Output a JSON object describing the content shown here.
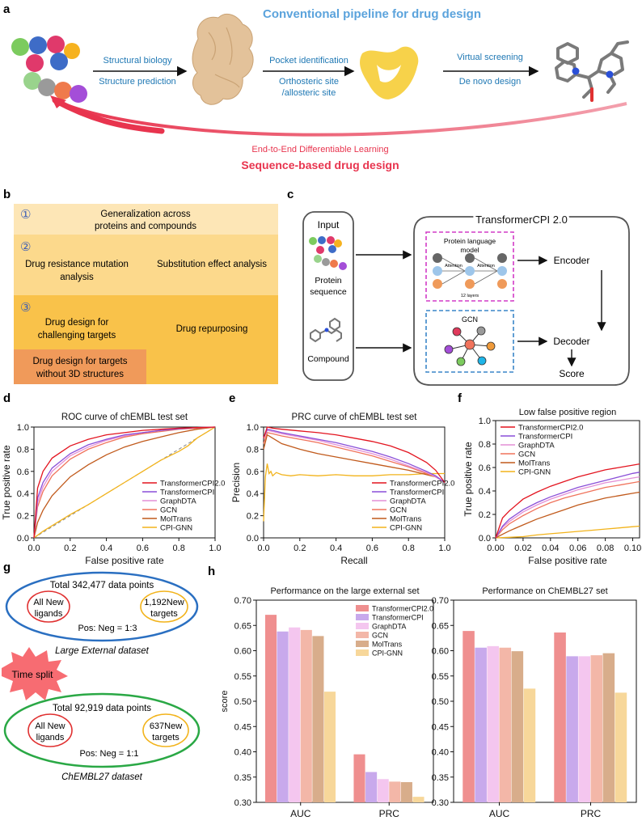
{
  "panel_letters": {
    "a": "a",
    "b": "b",
    "c": "c",
    "d": "d",
    "e": "e",
    "f": "f",
    "g": "g",
    "h": "h"
  },
  "panel_a": {
    "title": "Conventional pipeline for drug design",
    "step1_top": "Structural biology",
    "step1_bottom": "Structure prediction",
    "step2_top": "Pocket identification",
    "step2_mid": "Orthosteric site",
    "step2_bottom": "/allosteric site",
    "step3_top": "Virtual screening",
    "step3_bottom": "De novo design",
    "e2e_label": "End-to-End Differentiable Learning",
    "sequence_label": "Sequence-based drug design",
    "colors": {
      "blue_title": "#5ba3dc",
      "step_text": "#1f78b4",
      "red": "#e8344e",
      "pocket": "#f7d24a",
      "protein": "#e3c29a"
    }
  },
  "panel_b": {
    "section1_num": "①",
    "section1_text_l1": "Generalization across",
    "section1_text_l2": "proteins and compounds",
    "section2_num": "②",
    "section2_left_l1": "Drug resistance mutation",
    "section2_left_l2": "analysis",
    "section2_right": "Substitution effect analysis",
    "section3_num": "③",
    "section3_left_l1": "Drug design for",
    "section3_left_l2": "challenging targets",
    "section3_right": "Drug repurposing",
    "section3_bottom_l1": "Drug design for targets",
    "section3_bottom_l2": "without 3D structures",
    "colors": {
      "s1": "#fde6b6",
      "s2": "#fcd98c",
      "s3": "#f9c24a",
      "s3b": "#f09a5a"
    }
  },
  "panel_c": {
    "input_label": "Input",
    "protein_label_l1": "Protein",
    "protein_label_l2": "sequence",
    "compound_label": "Compound",
    "model_title": "TransformerCPI 2.0",
    "plm_l1": "Protein language",
    "plm_l2": "model",
    "attention1": "Attention",
    "attention2": "Attention",
    "layers": "12 layers",
    "gcn_label": "GCN",
    "encoder": "Encoder",
    "decoder": "Decoder",
    "score": "Score"
  },
  "chart_data": [
    {
      "id": "d",
      "type": "line",
      "title": "ROC curve of chEMBL test set",
      "xlabel": "False positive rate",
      "ylabel": "True positive rate",
      "xlim": [
        0,
        1
      ],
      "ylim": [
        0,
        1
      ],
      "xticks": [
        "0.0",
        "0.2",
        "0.4",
        "0.6",
        "0.8",
        "1.0"
      ],
      "yticks": [
        "0.0",
        "0.2",
        "0.4",
        "0.6",
        "0.8",
        "1.0"
      ],
      "legend_position": "bottom-right",
      "series": [
        {
          "name": "TransformerCPI2.0",
          "color": "#e3141f",
          "x": [
            0,
            0.02,
            0.05,
            0.1,
            0.2,
            0.3,
            0.4,
            0.5,
            0.6,
            0.7,
            0.8,
            0.9,
            1.0
          ],
          "y": [
            0,
            0.45,
            0.6,
            0.72,
            0.83,
            0.89,
            0.93,
            0.95,
            0.97,
            0.98,
            0.99,
            0.995,
            1.0
          ]
        },
        {
          "name": "TransformerCPI",
          "color": "#8a4fd8",
          "x": [
            0,
            0.02,
            0.05,
            0.1,
            0.2,
            0.3,
            0.4,
            0.5,
            0.6,
            0.7,
            0.8,
            0.9,
            1.0
          ],
          "y": [
            0,
            0.36,
            0.5,
            0.63,
            0.76,
            0.84,
            0.89,
            0.93,
            0.95,
            0.97,
            0.985,
            0.995,
            1.0
          ]
        },
        {
          "name": "GraphDTA",
          "color": "#e38fd6",
          "x": [
            0,
            0.02,
            0.05,
            0.1,
            0.2,
            0.3,
            0.4,
            0.5,
            0.6,
            0.7,
            0.8,
            0.9,
            1.0
          ],
          "y": [
            0,
            0.32,
            0.46,
            0.6,
            0.74,
            0.82,
            0.88,
            0.92,
            0.95,
            0.97,
            0.985,
            0.995,
            1.0
          ]
        },
        {
          "name": "GCN",
          "color": "#f0735c",
          "x": [
            0,
            0.02,
            0.05,
            0.1,
            0.2,
            0.3,
            0.4,
            0.5,
            0.6,
            0.7,
            0.8,
            0.9,
            1.0
          ],
          "y": [
            0,
            0.28,
            0.42,
            0.56,
            0.71,
            0.8,
            0.86,
            0.91,
            0.94,
            0.96,
            0.98,
            0.99,
            1.0
          ]
        },
        {
          "name": "MolTrans",
          "color": "#c15a1c",
          "x": [
            0,
            0.02,
            0.05,
            0.1,
            0.2,
            0.3,
            0.4,
            0.5,
            0.6,
            0.7,
            0.8,
            0.9,
            1.0
          ],
          "y": [
            0,
            0.14,
            0.25,
            0.38,
            0.55,
            0.66,
            0.75,
            0.82,
            0.87,
            0.91,
            0.95,
            0.98,
            1.0
          ]
        },
        {
          "name": "CPI-GNN",
          "color": "#f2b31b",
          "x": [
            0,
            0.05,
            0.1,
            0.2,
            0.3,
            0.4,
            0.5,
            0.6,
            0.7,
            0.75,
            0.8,
            0.85,
            0.9,
            0.95,
            1.0
          ],
          "y": [
            0,
            0.06,
            0.11,
            0.21,
            0.3,
            0.4,
            0.5,
            0.6,
            0.7,
            0.74,
            0.78,
            0.83,
            0.9,
            0.95,
            1.0
          ]
        }
      ],
      "diagonal": true
    },
    {
      "id": "e",
      "type": "line",
      "title": "PRC curve of chEMBL test set",
      "xlabel": "Recall",
      "ylabel": "Precision",
      "xlim": [
        0,
        1
      ],
      "ylim": [
        0,
        1
      ],
      "xticks": [
        "0.0",
        "0.2",
        "0.4",
        "0.6",
        "0.8",
        "1.0"
      ],
      "yticks": [
        "0.0",
        "0.2",
        "0.4",
        "0.6",
        "0.8",
        "1.0"
      ],
      "legend_position": "bottom-right",
      "series": [
        {
          "name": "TransformerCPI2.0",
          "color": "#e3141f",
          "x": [
            0,
            0.02,
            0.05,
            0.1,
            0.2,
            0.3,
            0.4,
            0.5,
            0.6,
            0.7,
            0.8,
            0.9,
            0.95,
            1.0
          ],
          "y": [
            0.9,
            1.0,
            0.99,
            0.98,
            0.965,
            0.95,
            0.93,
            0.9,
            0.87,
            0.83,
            0.77,
            0.68,
            0.61,
            0.5
          ]
        },
        {
          "name": "TransformerCPI",
          "color": "#8a4fd8",
          "x": [
            0,
            0.02,
            0.05,
            0.1,
            0.2,
            0.3,
            0.4,
            0.5,
            0.6,
            0.7,
            0.8,
            0.9,
            0.95,
            1.0
          ],
          "y": [
            0.9,
            0.98,
            0.97,
            0.95,
            0.92,
            0.89,
            0.86,
            0.82,
            0.78,
            0.73,
            0.67,
            0.6,
            0.56,
            0.5
          ]
        },
        {
          "name": "GraphDTA",
          "color": "#e38fd6",
          "x": [
            0,
            0.02,
            0.05,
            0.1,
            0.2,
            0.3,
            0.4,
            0.5,
            0.6,
            0.7,
            0.8,
            0.9,
            0.95,
            1.0
          ],
          "y": [
            0.9,
            0.97,
            0.96,
            0.94,
            0.91,
            0.88,
            0.84,
            0.8,
            0.76,
            0.71,
            0.65,
            0.59,
            0.55,
            0.5
          ]
        },
        {
          "name": "GCN",
          "color": "#f0735c",
          "x": [
            0,
            0.02,
            0.05,
            0.1,
            0.2,
            0.3,
            0.4,
            0.5,
            0.6,
            0.7,
            0.8,
            0.9,
            0.95,
            1.0
          ],
          "y": [
            0.85,
            0.95,
            0.94,
            0.92,
            0.89,
            0.86,
            0.82,
            0.78,
            0.74,
            0.69,
            0.64,
            0.58,
            0.55,
            0.5
          ]
        },
        {
          "name": "MolTrans",
          "color": "#c15a1c",
          "x": [
            0,
            0.02,
            0.05,
            0.1,
            0.2,
            0.3,
            0.4,
            0.5,
            0.6,
            0.7,
            0.8,
            0.9,
            0.95,
            1.0
          ],
          "y": [
            0.8,
            0.93,
            0.9,
            0.85,
            0.8,
            0.76,
            0.73,
            0.7,
            0.67,
            0.64,
            0.61,
            0.57,
            0.55,
            0.5
          ]
        },
        {
          "name": "CPI-GNN",
          "color": "#f2b31b",
          "x": [
            0,
            0.01,
            0.02,
            0.03,
            0.04,
            0.05,
            0.07,
            0.1,
            0.15,
            0.2,
            0.3,
            0.4,
            0.5,
            0.6,
            0.7,
            0.8,
            0.9,
            1.0
          ],
          "y": [
            0.15,
            0.55,
            0.67,
            0.58,
            0.6,
            0.56,
            0.59,
            0.57,
            0.56,
            0.57,
            0.56,
            0.57,
            0.56,
            0.56,
            0.57,
            0.57,
            0.58,
            0.58
          ]
        }
      ]
    },
    {
      "id": "f",
      "type": "line",
      "title": "Low false positive region",
      "xlabel": "False positive rate",
      "ylabel": "True positive rate",
      "xlim": [
        0,
        0.105
      ],
      "ylim": [
        0,
        1
      ],
      "xticks": [
        "0.00",
        "0.02",
        "0.04",
        "0.06",
        "0.08",
        "0.10"
      ],
      "yticks": [
        "0.0",
        "0.2",
        "0.4",
        "0.6",
        "0.8",
        "1.0"
      ],
      "legend_position": "top-left",
      "series": [
        {
          "name": "TransformerCPI2.0",
          "color": "#e3141f",
          "x": [
            0,
            0.005,
            0.01,
            0.02,
            0.03,
            0.04,
            0.05,
            0.06,
            0.07,
            0.08,
            0.09,
            0.1,
            0.105
          ],
          "y": [
            0,
            0.17,
            0.23,
            0.33,
            0.39,
            0.44,
            0.48,
            0.52,
            0.55,
            0.58,
            0.6,
            0.62,
            0.63
          ]
        },
        {
          "name": "TransformerCPI",
          "color": "#8a4fd8",
          "x": [
            0,
            0.005,
            0.01,
            0.02,
            0.03,
            0.04,
            0.05,
            0.06,
            0.07,
            0.08,
            0.09,
            0.1,
            0.105
          ],
          "y": [
            0,
            0.1,
            0.16,
            0.24,
            0.3,
            0.35,
            0.39,
            0.43,
            0.46,
            0.49,
            0.52,
            0.55,
            0.56
          ]
        },
        {
          "name": "GraphDTA",
          "color": "#e38fd6",
          "x": [
            0,
            0.005,
            0.01,
            0.02,
            0.03,
            0.04,
            0.05,
            0.06,
            0.07,
            0.08,
            0.09,
            0.1,
            0.105
          ],
          "y": [
            0,
            0.09,
            0.14,
            0.22,
            0.28,
            0.33,
            0.37,
            0.41,
            0.44,
            0.47,
            0.49,
            0.51,
            0.52
          ]
        },
        {
          "name": "GCN",
          "color": "#f0735c",
          "x": [
            0,
            0.005,
            0.01,
            0.02,
            0.03,
            0.04,
            0.05,
            0.06,
            0.07,
            0.08,
            0.09,
            0.1,
            0.105
          ],
          "y": [
            0,
            0.07,
            0.12,
            0.19,
            0.25,
            0.3,
            0.34,
            0.37,
            0.4,
            0.43,
            0.45,
            0.47,
            0.48
          ]
        },
        {
          "name": "MolTrans",
          "color": "#c15a1c",
          "x": [
            0,
            0.005,
            0.01,
            0.02,
            0.03,
            0.04,
            0.05,
            0.06,
            0.07,
            0.08,
            0.09,
            0.1,
            0.105
          ],
          "y": [
            0,
            0.03,
            0.06,
            0.11,
            0.16,
            0.2,
            0.24,
            0.28,
            0.31,
            0.34,
            0.36,
            0.38,
            0.39
          ]
        },
        {
          "name": "CPI-GNN",
          "color": "#f2b31b",
          "x": [
            0,
            0.01,
            0.02,
            0.03,
            0.04,
            0.05,
            0.06,
            0.07,
            0.08,
            0.09,
            0.1,
            0.105
          ],
          "y": [
            0,
            0.005,
            0.01,
            0.025,
            0.035,
            0.045,
            0.055,
            0.065,
            0.075,
            0.085,
            0.095,
            0.1
          ]
        }
      ]
    },
    {
      "id": "h1",
      "type": "bar",
      "title": "Performance on the large external set",
      "ylabel": "score",
      "ylim": [
        0.3,
        0.7
      ],
      "yticks": [
        "0.30",
        "0.35",
        "0.40",
        "0.45",
        "0.50",
        "0.55",
        "0.60",
        "0.65",
        "0.70"
      ],
      "categories": [
        "AUC",
        "PRC"
      ],
      "legend_position": "top-right",
      "series": [
        {
          "name": "TransformerCPI2.0",
          "color": "#ef8f8f",
          "values": [
            0.671,
            0.395
          ]
        },
        {
          "name": "TransformerCPI",
          "color": "#c8a9ec",
          "values": [
            0.638,
            0.36
          ]
        },
        {
          "name": "GraphDTA",
          "color": "#f4c6ef",
          "values": [
            0.646,
            0.346
          ]
        },
        {
          "name": "GCN",
          "color": "#f3b7a8",
          "values": [
            0.641,
            0.341
          ]
        },
        {
          "name": "MolTrans",
          "color": "#d8ad8b",
          "values": [
            0.629,
            0.34
          ]
        },
        {
          "name": "CPI-GNN",
          "color": "#f7d79a",
          "values": [
            0.519,
            0.311
          ]
        }
      ]
    },
    {
      "id": "h2",
      "type": "bar",
      "title": "Performance on ChEMBL27 set",
      "ylim": [
        0.3,
        0.7
      ],
      "yticks": [
        "0.30",
        "0.35",
        "0.40",
        "0.45",
        "0.50",
        "0.55",
        "0.60",
        "0.65",
        "0.70"
      ],
      "categories": [
        "AUC",
        "PRC"
      ],
      "series": [
        {
          "name": "TransformerCPI2.0",
          "color": "#ef8f8f",
          "values": [
            0.639,
            0.636
          ]
        },
        {
          "name": "TransformerCPI",
          "color": "#c8a9ec",
          "values": [
            0.606,
            0.589
          ]
        },
        {
          "name": "GraphDTA",
          "color": "#f4c6ef",
          "values": [
            0.609,
            0.589
          ]
        },
        {
          "name": "GCN",
          "color": "#f3b7a8",
          "values": [
            0.606,
            0.591
          ]
        },
        {
          "name": "MolTrans",
          "color": "#d8ad8b",
          "values": [
            0.599,
            0.595
          ]
        },
        {
          "name": "CPI-GNN",
          "color": "#f7d79a",
          "values": [
            0.525,
            0.517
          ]
        }
      ]
    }
  ],
  "panel_g": {
    "large_total": "Total 342,477 data points",
    "large_ligands_l1": "All New",
    "large_ligands_l2": "ligands",
    "large_targets_l1": "1,192New",
    "large_targets_l2": "targets",
    "large_ratio": "Pos: Neg = 1:3",
    "large_name": "Large External dataset",
    "time_split": "Time split",
    "chembl_total": "Total 92,919 data points",
    "chembl_ligands_l1": "All New",
    "chembl_ligands_l2": "ligands",
    "chembl_targets_l1": "637New",
    "chembl_targets_l2": "targets",
    "chembl_ratio": "Pos: Neg = 1:1",
    "chembl_name": "ChEMBL27 dataset"
  }
}
